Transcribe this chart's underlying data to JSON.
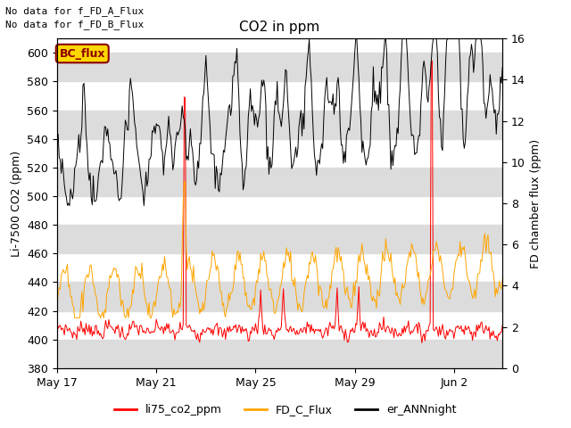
{
  "title": "CO2 in ppm",
  "ylabel_left": "Li-7500 CO2 (ppm)",
  "ylabel_right": "FD chamber flux (ppm)",
  "text_top_left": [
    "No data for f_FD_A_Flux",
    "No data for f_FD_B_Flux"
  ],
  "bc_flux_label": "BC_flux",
  "ylim_left": [
    380,
    610
  ],
  "ylim_right": [
    0,
    16
  ],
  "yticks_left": [
    380,
    400,
    420,
    440,
    460,
    480,
    500,
    520,
    540,
    560,
    580,
    600
  ],
  "yticks_right": [
    0,
    2,
    4,
    6,
    8,
    10,
    12,
    14,
    16
  ],
  "xtick_labels": [
    "May 17",
    "May 21",
    "May 25",
    "May 29",
    "Jun 2"
  ],
  "xtick_days": [
    0,
    4,
    8,
    12,
    16
  ],
  "total_days": 18,
  "colors": {
    "red": "#FF0000",
    "orange": "#FFA500",
    "black": "#000000",
    "bc_flux_bg": "#FFD700",
    "bc_flux_border": "#8B0000",
    "bc_flux_text": "#8B0000",
    "band_color": "#DCDCDC"
  },
  "legend": [
    {
      "label": "li75_co2_ppm",
      "color": "#FF0000"
    },
    {
      "label": "FD_C_Flux",
      "color": "#FFA500"
    },
    {
      "label": "er_ANNnight",
      "color": "#000000"
    }
  ],
  "subplot_adjust": [
    0.1,
    0.88,
    0.91,
    0.14
  ]
}
